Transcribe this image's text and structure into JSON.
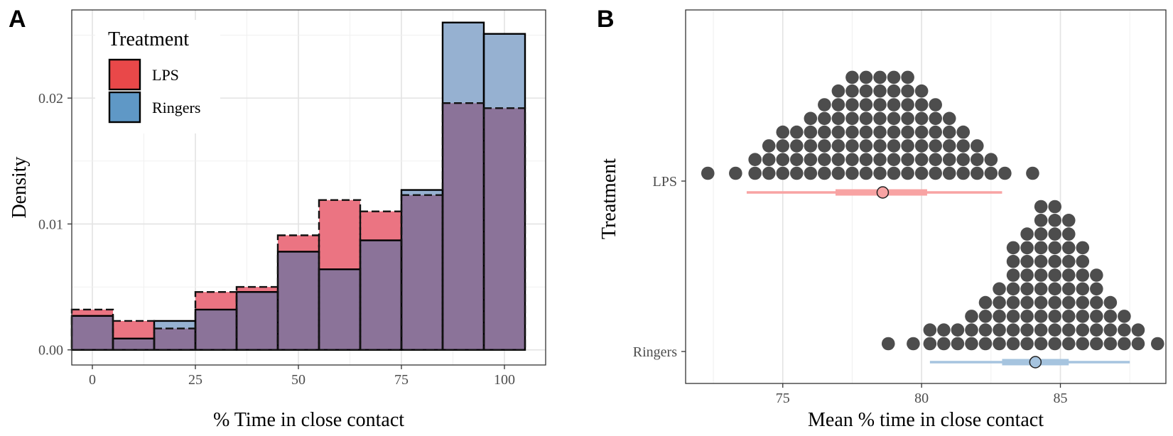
{
  "chart_data": [
    {
      "panel": "A",
      "type": "bar",
      "subtype": "overlaid-histogram",
      "xlabel": "% Time in close contact",
      "ylabel": "Density",
      "xlim": [
        -5,
        110
      ],
      "ylim": [
        -0.0012,
        0.027
      ],
      "xticks": [
        0,
        25,
        50,
        75,
        100
      ],
      "xtick_labels": [
        "0",
        "25",
        "50",
        "75",
        "100"
      ],
      "yticks": [
        0,
        0.01,
        0.02
      ],
      "ytick_labels": [
        "0.00",
        "0.01",
        "0.02"
      ],
      "grid": true,
      "legend_placement": "top-left",
      "legend_title": "Treatment",
      "bin_width": 10,
      "bin_centers": [
        0,
        10,
        20,
        30,
        40,
        50,
        60,
        70,
        80,
        90,
        100
      ],
      "series": [
        {
          "name": "LPS",
          "color": "#E41A1C",
          "values": [
            0.0032,
            0.0023,
            0.0017,
            0.0046,
            0.005,
            0.0091,
            0.0119,
            0.011,
            0.0123,
            0.0196,
            0.0192
          ]
        },
        {
          "name": "Ringers",
          "color": "#377EB8",
          "values": [
            0.0027,
            0.0009,
            0.0023,
            0.0032,
            0.0046,
            0.0078,
            0.0064,
            0.0087,
            0.0127,
            0.026,
            0.0251
          ]
        }
      ],
      "overlap_color": "#8B7399"
    },
    {
      "panel": "B",
      "type": "scatter",
      "subtype": "dotplot-with-intervals",
      "xlabel": "Mean % time in close contact",
      "ylabel": "Treatment",
      "xlim": [
        71.5,
        88.8
      ],
      "xticks": [
        75,
        80,
        85
      ],
      "xtick_labels": [
        "75",
        "80",
        "85"
      ],
      "categories": [
        "LPS",
        "Ringers"
      ],
      "grid": true,
      "dot_color": "#4D4D4D",
      "dotplot_bin_width": 0.5,
      "series": [
        {
          "name": "LPS",
          "interval_color": "#F8A3A3",
          "point_fill": "#F8A3A3",
          "mean": 78.6,
          "inner_interval": [
            76.9,
            80.2
          ],
          "outer_interval": [
            73.7,
            82.9
          ],
          "dot_counts": {
            "72.3": 1,
            "73.3": 1,
            "74": 2,
            "74.5": 3,
            "75": 4,
            "75.5": 4,
            "76": 5,
            "76.5": 6,
            "77": 7,
            "77.5": 8,
            "78": 8,
            "78.5": 8,
            "79": 8,
            "79.5": 8,
            "80": 7,
            "80.5": 6,
            "81": 5,
            "81.5": 4,
            "82": 3,
            "82.5": 2,
            "83": 1,
            "84": 1
          }
        },
        {
          "name": "Ringers",
          "interval_color": "#A6C4DF",
          "point_fill": "#A6C4DF",
          "mean": 84.1,
          "inner_interval": [
            82.9,
            85.3
          ],
          "outer_interval": [
            80.3,
            87.5
          ],
          "dot_counts": {
            "78.8": 1,
            "79.7": 1,
            "80.3": 2,
            "80.8": 2,
            "81.3": 2,
            "81.8": 3,
            "82.3": 4,
            "82.8": 5,
            "83.3": 8,
            "83.8": 9,
            "84.3": 11,
            "84.8": 11,
            "85.3": 10,
            "85.8": 8,
            "86.3": 6,
            "86.8": 4,
            "87.3": 3,
            "87.8": 2,
            "88.5": 1
          }
        }
      ]
    }
  ]
}
